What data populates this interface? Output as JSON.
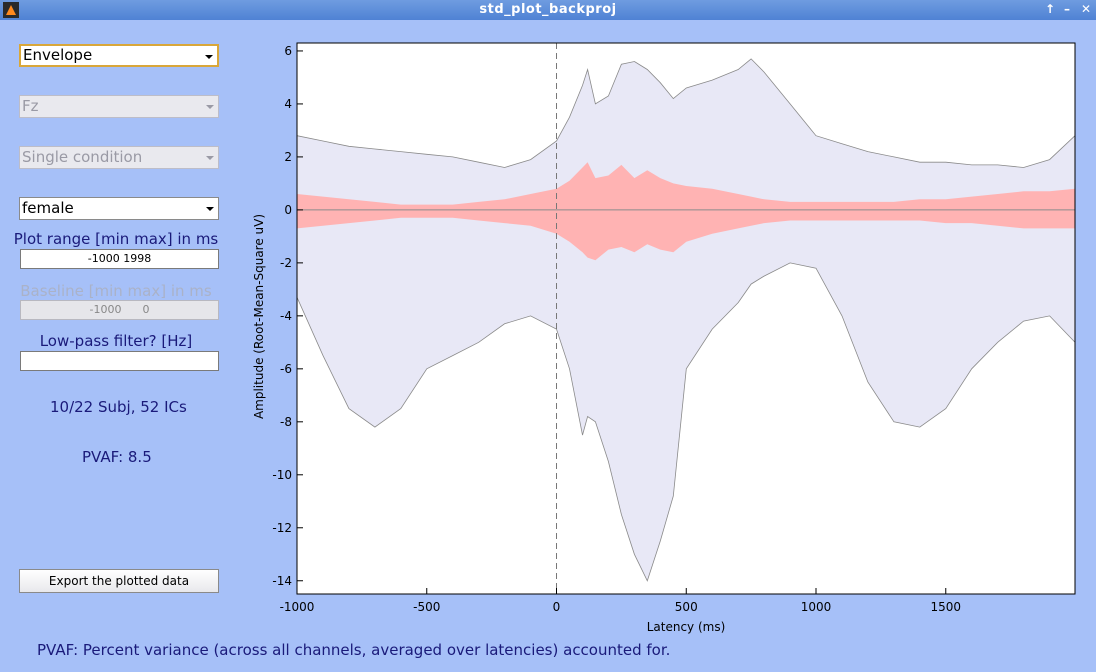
{
  "window": {
    "title": "std_plot_backproj"
  },
  "controls": {
    "measure_select": "Envelope",
    "channel_select": "Fz",
    "condition_select": "Single condition",
    "group_select": "female",
    "plot_range_label": "Plot range [min max] in ms",
    "plot_range_value": "-1000 1998",
    "baseline_label": "Baseline [min max] in ms",
    "baseline_value": "-1000      0",
    "lowpass_label": "Low-pass filter? [Hz]",
    "lowpass_value": "",
    "subj_info": "10/22 Subj, 52 ICs",
    "pvaf_info": "PVAF: 8.5",
    "export_label": "Export the plotted data",
    "footnote": "PVAF: Percent variance (across all channels, averaged over latencies) accounted for."
  },
  "chart_data": {
    "type": "area",
    "xlabel": "Latency (ms)",
    "ylabel": "Amplitude (Root-Mean-Square uV)",
    "xlim": [
      -1000,
      1998
    ],
    "ylim": [
      -14.5,
      6.3
    ],
    "x_ticks": [
      -1000,
      -500,
      0,
      500,
      1000,
      1500
    ],
    "y_ticks": [
      6,
      4,
      2,
      0,
      -2,
      -4,
      -6,
      -8,
      -10,
      -12,
      -14
    ],
    "vertical_line_x": 0,
    "series": [
      {
        "name": "",
        "color": "#e8e8f6",
        "x": [
          -1000,
          -900,
          -800,
          -700,
          -600,
          -500,
          -400,
          -300,
          -200,
          -100,
          0,
          50,
          100,
          120,
          150,
          200,
          250,
          300,
          350,
          400,
          450,
          500,
          600,
          700,
          750,
          800,
          900,
          1000,
          1100,
          1200,
          1300,
          1400,
          1500,
          1600,
          1700,
          1800,
          1900,
          1998
        ],
        "upper": [
          2.8,
          2.6,
          2.4,
          2.3,
          2.2,
          2.1,
          2.0,
          1.8,
          1.6,
          1.9,
          2.6,
          3.5,
          4.7,
          5.3,
          4.0,
          4.3,
          5.5,
          5.6,
          5.3,
          4.8,
          4.2,
          4.6,
          4.9,
          5.3,
          5.7,
          5.2,
          4.0,
          2.8,
          2.5,
          2.2,
          2.0,
          1.8,
          1.8,
          1.7,
          1.7,
          1.6,
          1.9,
          2.8
        ],
        "lower": [
          -3.3,
          -5.5,
          -7.5,
          -8.2,
          -7.5,
          -6.0,
          -5.5,
          -5.0,
          -4.3,
          -4.0,
          -4.5,
          -6.0,
          -8.5,
          -7.8,
          -8.0,
          -9.5,
          -11.5,
          -13.0,
          -14.0,
          -12.5,
          -10.8,
          -6.0,
          -4.5,
          -3.5,
          -2.8,
          -2.5,
          -2.0,
          -2.2,
          -4.0,
          -6.5,
          -8.0,
          -8.2,
          -7.5,
          -6.0,
          -5.0,
          -4.2,
          -4.0,
          -5.0
        ]
      },
      {
        "name": "",
        "color": "#ffb3b3",
        "x": [
          -1000,
          -900,
          -800,
          -700,
          -600,
          -500,
          -400,
          -300,
          -200,
          -100,
          0,
          50,
          100,
          120,
          150,
          200,
          250,
          300,
          350,
          400,
          450,
          500,
          600,
          700,
          750,
          800,
          900,
          1000,
          1100,
          1200,
          1300,
          1400,
          1500,
          1600,
          1700,
          1800,
          1900,
          1998
        ],
        "upper": [
          0.6,
          0.5,
          0.4,
          0.3,
          0.2,
          0.2,
          0.2,
          0.3,
          0.4,
          0.6,
          0.8,
          1.1,
          1.6,
          1.8,
          1.2,
          1.3,
          1.7,
          1.2,
          1.5,
          1.2,
          1.0,
          0.9,
          0.8,
          0.6,
          0.5,
          0.4,
          0.3,
          0.3,
          0.3,
          0.3,
          0.3,
          0.4,
          0.4,
          0.5,
          0.6,
          0.7,
          0.7,
          0.8
        ],
        "lower": [
          -0.7,
          -0.6,
          -0.5,
          -0.4,
          -0.3,
          -0.3,
          -0.3,
          -0.4,
          -0.5,
          -0.6,
          -0.9,
          -1.2,
          -1.6,
          -1.8,
          -1.9,
          -1.5,
          -1.4,
          -1.6,
          -1.3,
          -1.5,
          -1.6,
          -1.2,
          -0.9,
          -0.7,
          -0.6,
          -0.5,
          -0.4,
          -0.4,
          -0.4,
          -0.4,
          -0.4,
          -0.4,
          -0.5,
          -0.5,
          -0.6,
          -0.7,
          -0.7,
          -0.7
        ]
      }
    ]
  }
}
